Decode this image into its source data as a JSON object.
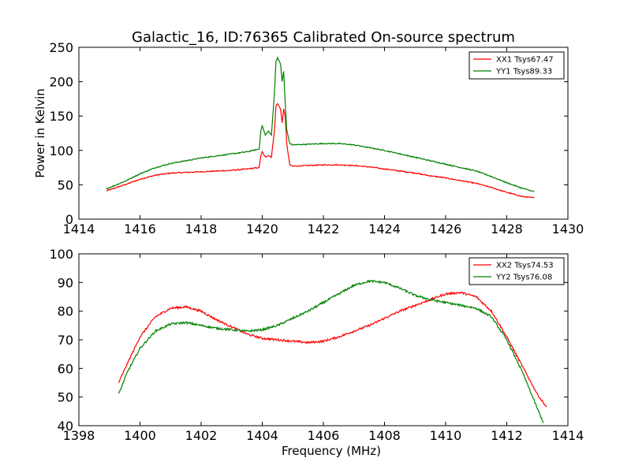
{
  "figure": {
    "title": "Galactic_16, ID:76365 Calibrated On-source spectrum"
  },
  "chart_data": [
    {
      "type": "line",
      "title": "Galactic_16, ID:76365 Calibrated On-source spectrum",
      "xlabel": "",
      "ylabel": "Power in Kelvin",
      "xlim": [
        1414,
        1430
      ],
      "ylim": [
        0,
        250
      ],
      "xticks": [
        1414,
        1416,
        1418,
        1420,
        1422,
        1424,
        1426,
        1428,
        1430
      ],
      "yticks": [
        0,
        50,
        100,
        150,
        200,
        250
      ],
      "grid": false,
      "legend_position": "top-right",
      "series": [
        {
          "name": "XX1 Tsys67.47",
          "color": "#ff0000",
          "x": [
            1414.9,
            1415.5,
            1416,
            1416.5,
            1417,
            1417.5,
            1418,
            1418.5,
            1419,
            1419.5,
            1419.9,
            1419.95,
            1420.0,
            1420.1,
            1420.2,
            1420.3,
            1420.4,
            1420.45,
            1420.5,
            1420.6,
            1420.65,
            1420.7,
            1420.75,
            1420.8,
            1420.9,
            1421.0,
            1421.5,
            1422,
            1422.5,
            1423,
            1423.5,
            1424,
            1424.5,
            1425,
            1425.5,
            1426,
            1426.5,
            1427,
            1427.5,
            1428,
            1428.5,
            1428.9
          ],
          "values": [
            41,
            50,
            58,
            64,
            67,
            68,
            69,
            70,
            71,
            73,
            75,
            92,
            98,
            90,
            93,
            90,
            130,
            165,
            168,
            160,
            140,
            160,
            150,
            110,
            79,
            77,
            78,
            79,
            79,
            78,
            76,
            73,
            70,
            67,
            63,
            60,
            56,
            52,
            46,
            39,
            33,
            31
          ]
        },
        {
          "name": "YY1 Tsys89.33",
          "color": "#008000",
          "x": [
            1414.9,
            1415.5,
            1416,
            1416.5,
            1417,
            1417.5,
            1418,
            1418.5,
            1419,
            1419.5,
            1419.9,
            1419.95,
            1420.0,
            1420.1,
            1420.2,
            1420.3,
            1420.4,
            1420.45,
            1420.5,
            1420.6,
            1420.65,
            1420.7,
            1420.75,
            1420.8,
            1420.9,
            1421.0,
            1421.5,
            1422,
            1422.5,
            1423,
            1423.5,
            1424,
            1424.5,
            1425,
            1425.5,
            1426,
            1426.5,
            1427,
            1427.5,
            1428,
            1428.5,
            1428.9
          ],
          "values": [
            44,
            55,
            66,
            75,
            81,
            85,
            89,
            92,
            95,
            98,
            102,
            128,
            136,
            122,
            128,
            122,
            185,
            230,
            235,
            225,
            200,
            215,
            170,
            130,
            110,
            108,
            109,
            110,
            110,
            108,
            104,
            100,
            95,
            90,
            85,
            80,
            75,
            70,
            62,
            53,
            45,
            40
          ]
        }
      ]
    },
    {
      "type": "line",
      "title": "",
      "xlabel": "Frequency (MHz)",
      "ylabel": "",
      "xlim": [
        1398,
        1414
      ],
      "ylim": [
        40,
        100
      ],
      "xticks": [
        1398,
        1400,
        1402,
        1404,
        1406,
        1408,
        1410,
        1412,
        1414
      ],
      "yticks": [
        40,
        50,
        60,
        70,
        80,
        90,
        100
      ],
      "grid": false,
      "legend_position": "top-right",
      "series": [
        {
          "name": "XX2 Tsys74.53",
          "color": "#ff0000",
          "x": [
            1399.3,
            1399.6,
            1400,
            1400.5,
            1401,
            1401.5,
            1402,
            1402.5,
            1403,
            1403.5,
            1404,
            1404.5,
            1405,
            1405.5,
            1406,
            1406.5,
            1407,
            1407.5,
            1408,
            1408.5,
            1409,
            1409.5,
            1410,
            1410.5,
            1411,
            1411.5,
            1412,
            1412.5,
            1413,
            1413.3
          ],
          "values": [
            55,
            62,
            71,
            78,
            81,
            81.5,
            80,
            77,
            74.5,
            72,
            70.5,
            70,
            69.5,
            69,
            69.5,
            71,
            73,
            75,
            77.5,
            80,
            82,
            84,
            86,
            86.5,
            85,
            80,
            71,
            61,
            51,
            46.5
          ]
        },
        {
          "name": "YY2 Tsys76.08",
          "color": "#008000",
          "x": [
            1399.3,
            1399.6,
            1400,
            1400.5,
            1401,
            1401.5,
            1402,
            1402.5,
            1403,
            1403.5,
            1404,
            1404.5,
            1405,
            1405.5,
            1406,
            1406.5,
            1407,
            1407.5,
            1408,
            1408.5,
            1409,
            1409.5,
            1410,
            1410.5,
            1411,
            1411.5,
            1412,
            1412.5,
            1413,
            1413.2
          ],
          "values": [
            51,
            59,
            67,
            73,
            75.5,
            76,
            75,
            74,
            73.5,
            73,
            73.5,
            75,
            77.5,
            80,
            83,
            86,
            89,
            90.5,
            90,
            88,
            85.5,
            84,
            83,
            82,
            81,
            78,
            70,
            59,
            46,
            41
          ]
        }
      ]
    }
  ]
}
